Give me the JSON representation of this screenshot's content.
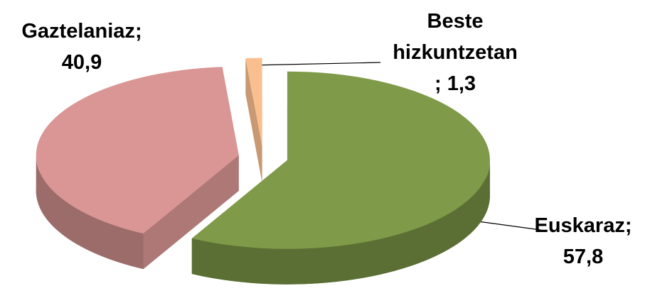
{
  "chart_data": {
    "type": "pie3d",
    "categories": [
      "Euskaraz",
      "Gaztelaniaz",
      "Beste hizkuntzetan"
    ],
    "values": [
      57.8,
      40.9,
      1.3
    ],
    "value_labels": [
      "57,8",
      "40,9",
      "1,3"
    ],
    "label_separator": ";",
    "colors": [
      "#7f9a48",
      "#d99694",
      "#fabf8f"
    ]
  }
}
